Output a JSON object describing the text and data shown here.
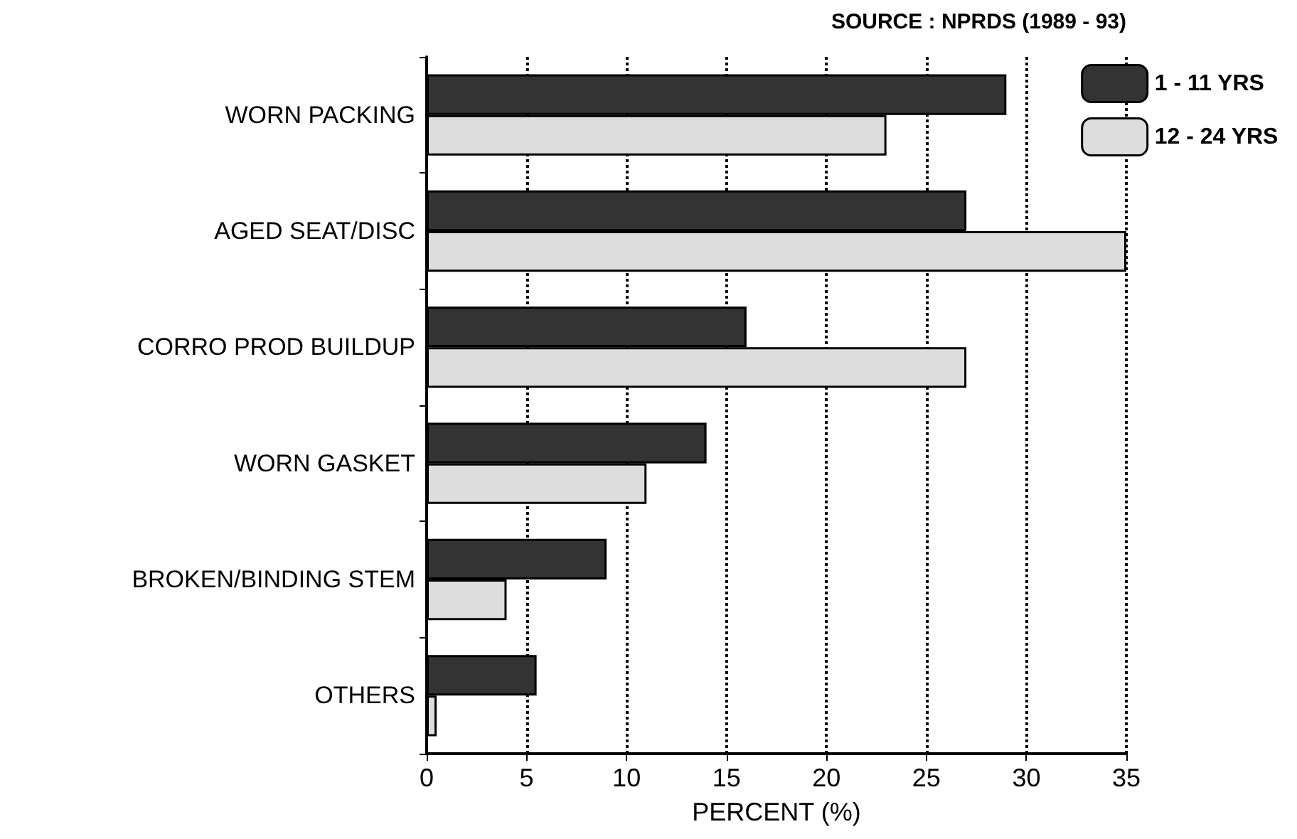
{
  "chart_data": {
    "type": "bar",
    "orientation": "horizontal",
    "categories": [
      "WORN PACKING",
      "AGED SEAT/DISC",
      "CORRO PROD BUILDUP",
      "WORN GASKET",
      "BROKEN/BINDING STEM",
      "OTHERS"
    ],
    "series": [
      {
        "name": "1 - 11 YRS",
        "color": "#333333",
        "values": [
          29,
          27,
          16,
          14,
          9,
          5.5
        ]
      },
      {
        "name": "12 - 24 YRS",
        "color": "#dddddd",
        "values": [
          23,
          35,
          27,
          11,
          4,
          0.5
        ]
      }
    ],
    "xlabel": "PERCENT (%)",
    "xlim": [
      0,
      35
    ],
    "xticks": [
      0,
      5,
      10,
      15,
      20,
      25,
      30,
      35
    ],
    "grid": "x",
    "legend": "top right",
    "annotations": [
      "SOURCE : NPRDS (1989 - 93)"
    ]
  }
}
